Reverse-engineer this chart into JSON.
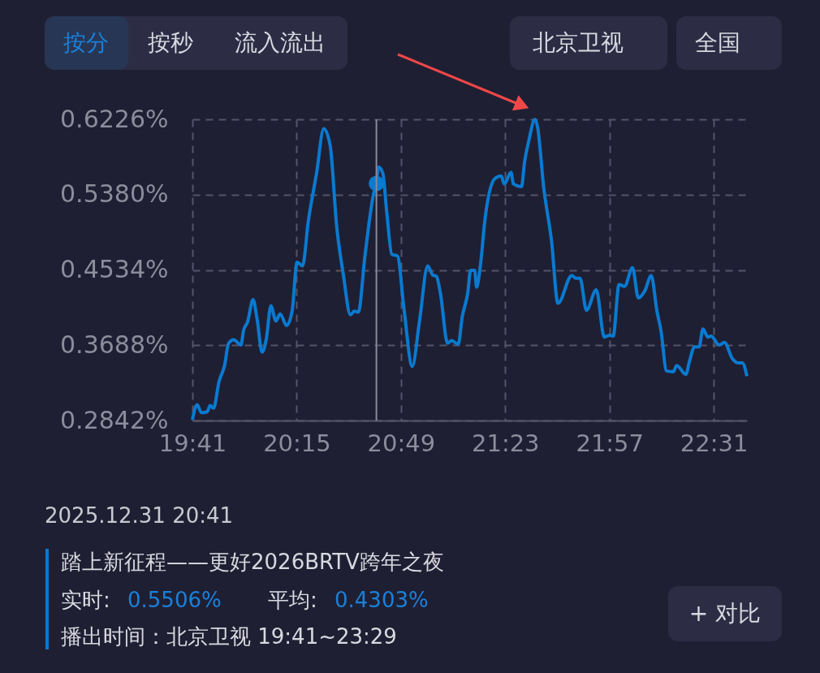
{
  "chart_data": {
    "type": "line",
    "annotations": [
      "按分",
      "按秒",
      "流入流出",
      "北京卫视",
      "全国",
      "2025.12.31 20:41",
      "踏上新征程——更好2026BRTV跨年之夜",
      "实时:",
      "0.5506%",
      "平均:",
      "0.4303%",
      "播出时间：北京卫视 19:41~23:29",
      "+ 对比"
    ],
    "xlim": [
      19.6833,
      22.697
    ],
    "xticks": [
      {
        "value": 19.6833,
        "label": "19:41"
      },
      {
        "value": 20.25,
        "label": "20:15"
      },
      {
        "value": 20.8167,
        "label": "20:49"
      },
      {
        "value": 21.3833,
        "label": "21:23"
      },
      {
        "value": 21.95,
        "label": "21:57"
      },
      {
        "value": 22.5167,
        "label": "22:31"
      }
    ],
    "ylim": [
      0.2842,
      0.6226
    ],
    "yticks": [
      {
        "value": 0.2842,
        "label": "0.2842%"
      },
      {
        "value": 0.3688,
        "label": "0.3688%"
      },
      {
        "value": 0.4534,
        "label": "0.4534%"
      },
      {
        "value": 0.538,
        "label": "0.5380%"
      },
      {
        "value": 0.6226,
        "label": "0.6226%"
      }
    ],
    "grid": true,
    "line_style": "solid",
    "ref_lines": [
      {
        "axis": "x",
        "value": 20.6833,
        "color": "#8a8a9a"
      }
    ],
    "series": [
      {
        "color": "#0a7ad0",
        "x": [
          19.6833,
          19.709,
          19.732,
          19.763,
          19.78,
          19.798,
          19.828,
          19.858,
          19.88,
          19.908,
          19.947,
          19.961,
          19.983,
          20.013,
          20.035,
          20.062,
          20.085,
          20.11,
          20.137,
          20.16,
          20.195,
          20.225,
          20.252,
          20.282,
          20.313,
          20.358,
          20.397,
          20.432,
          20.468,
          20.503,
          20.542,
          20.563,
          20.585,
          20.622,
          20.667,
          20.683,
          20.695,
          20.718,
          20.74,
          20.767,
          20.798,
          20.833,
          20.878,
          20.917,
          20.962,
          20.988,
          21.01,
          21.032,
          21.07,
          21.092,
          21.128,
          21.15,
          21.18,
          21.195,
          21.217,
          21.228,
          21.247,
          21.275,
          21.327,
          21.362,
          21.378,
          21.415,
          21.428,
          21.472,
          21.488,
          21.512,
          21.545,
          21.56,
          21.592,
          21.635,
          21.67,
          21.745,
          21.768,
          21.79,
          21.825,
          21.878,
          21.922,
          21.952,
          21.97,
          22.002,
          22.032,
          22.075,
          22.107,
          22.142,
          22.177,
          22.208,
          22.23,
          22.26,
          22.297,
          22.315,
          22.365,
          22.385,
          22.412,
          22.437,
          22.458,
          22.485,
          22.502,
          22.547,
          22.575,
          22.617,
          22.65,
          22.672,
          22.697
        ],
        "values": [
          0.285,
          0.302,
          0.293,
          0.294,
          0.301,
          0.298,
          0.328,
          0.346,
          0.371,
          0.375,
          0.369,
          0.385,
          0.395,
          0.42,
          0.398,
          0.361,
          0.376,
          0.413,
          0.396,
          0.404,
          0.391,
          0.407,
          0.462,
          0.458,
          0.508,
          0.562,
          0.612,
          0.593,
          0.501,
          0.449,
          0.403,
          0.407,
          0.406,
          0.471,
          0.538,
          0.5506,
          0.569,
          0.562,
          0.517,
          0.471,
          0.469,
          0.41,
          0.345,
          0.395,
          0.458,
          0.448,
          0.446,
          0.426,
          0.371,
          0.374,
          0.37,
          0.401,
          0.428,
          0.453,
          0.453,
          0.434,
          0.456,
          0.513,
          0.556,
          0.559,
          0.55,
          0.563,
          0.55,
          0.547,
          0.574,
          0.599,
          0.6226,
          0.613,
          0.547,
          0.486,
          0.416,
          0.447,
          0.444,
          0.444,
          0.408,
          0.431,
          0.378,
          0.38,
          0.379,
          0.437,
          0.435,
          0.456,
          0.422,
          0.43,
          0.447,
          0.407,
          0.385,
          0.34,
          0.339,
          0.346,
          0.336,
          0.351,
          0.367,
          0.367,
          0.387,
          0.378,
          0.379,
          0.369,
          0.372,
          0.354,
          0.349,
          0.349,
          0.334
        ]
      },
      {
        "type": "scatter",
        "marker": "circle",
        "color": "#0a7ad0",
        "x": [
          20.6833
        ],
        "values": [
          0.5506
        ]
      }
    ]
  }
}
